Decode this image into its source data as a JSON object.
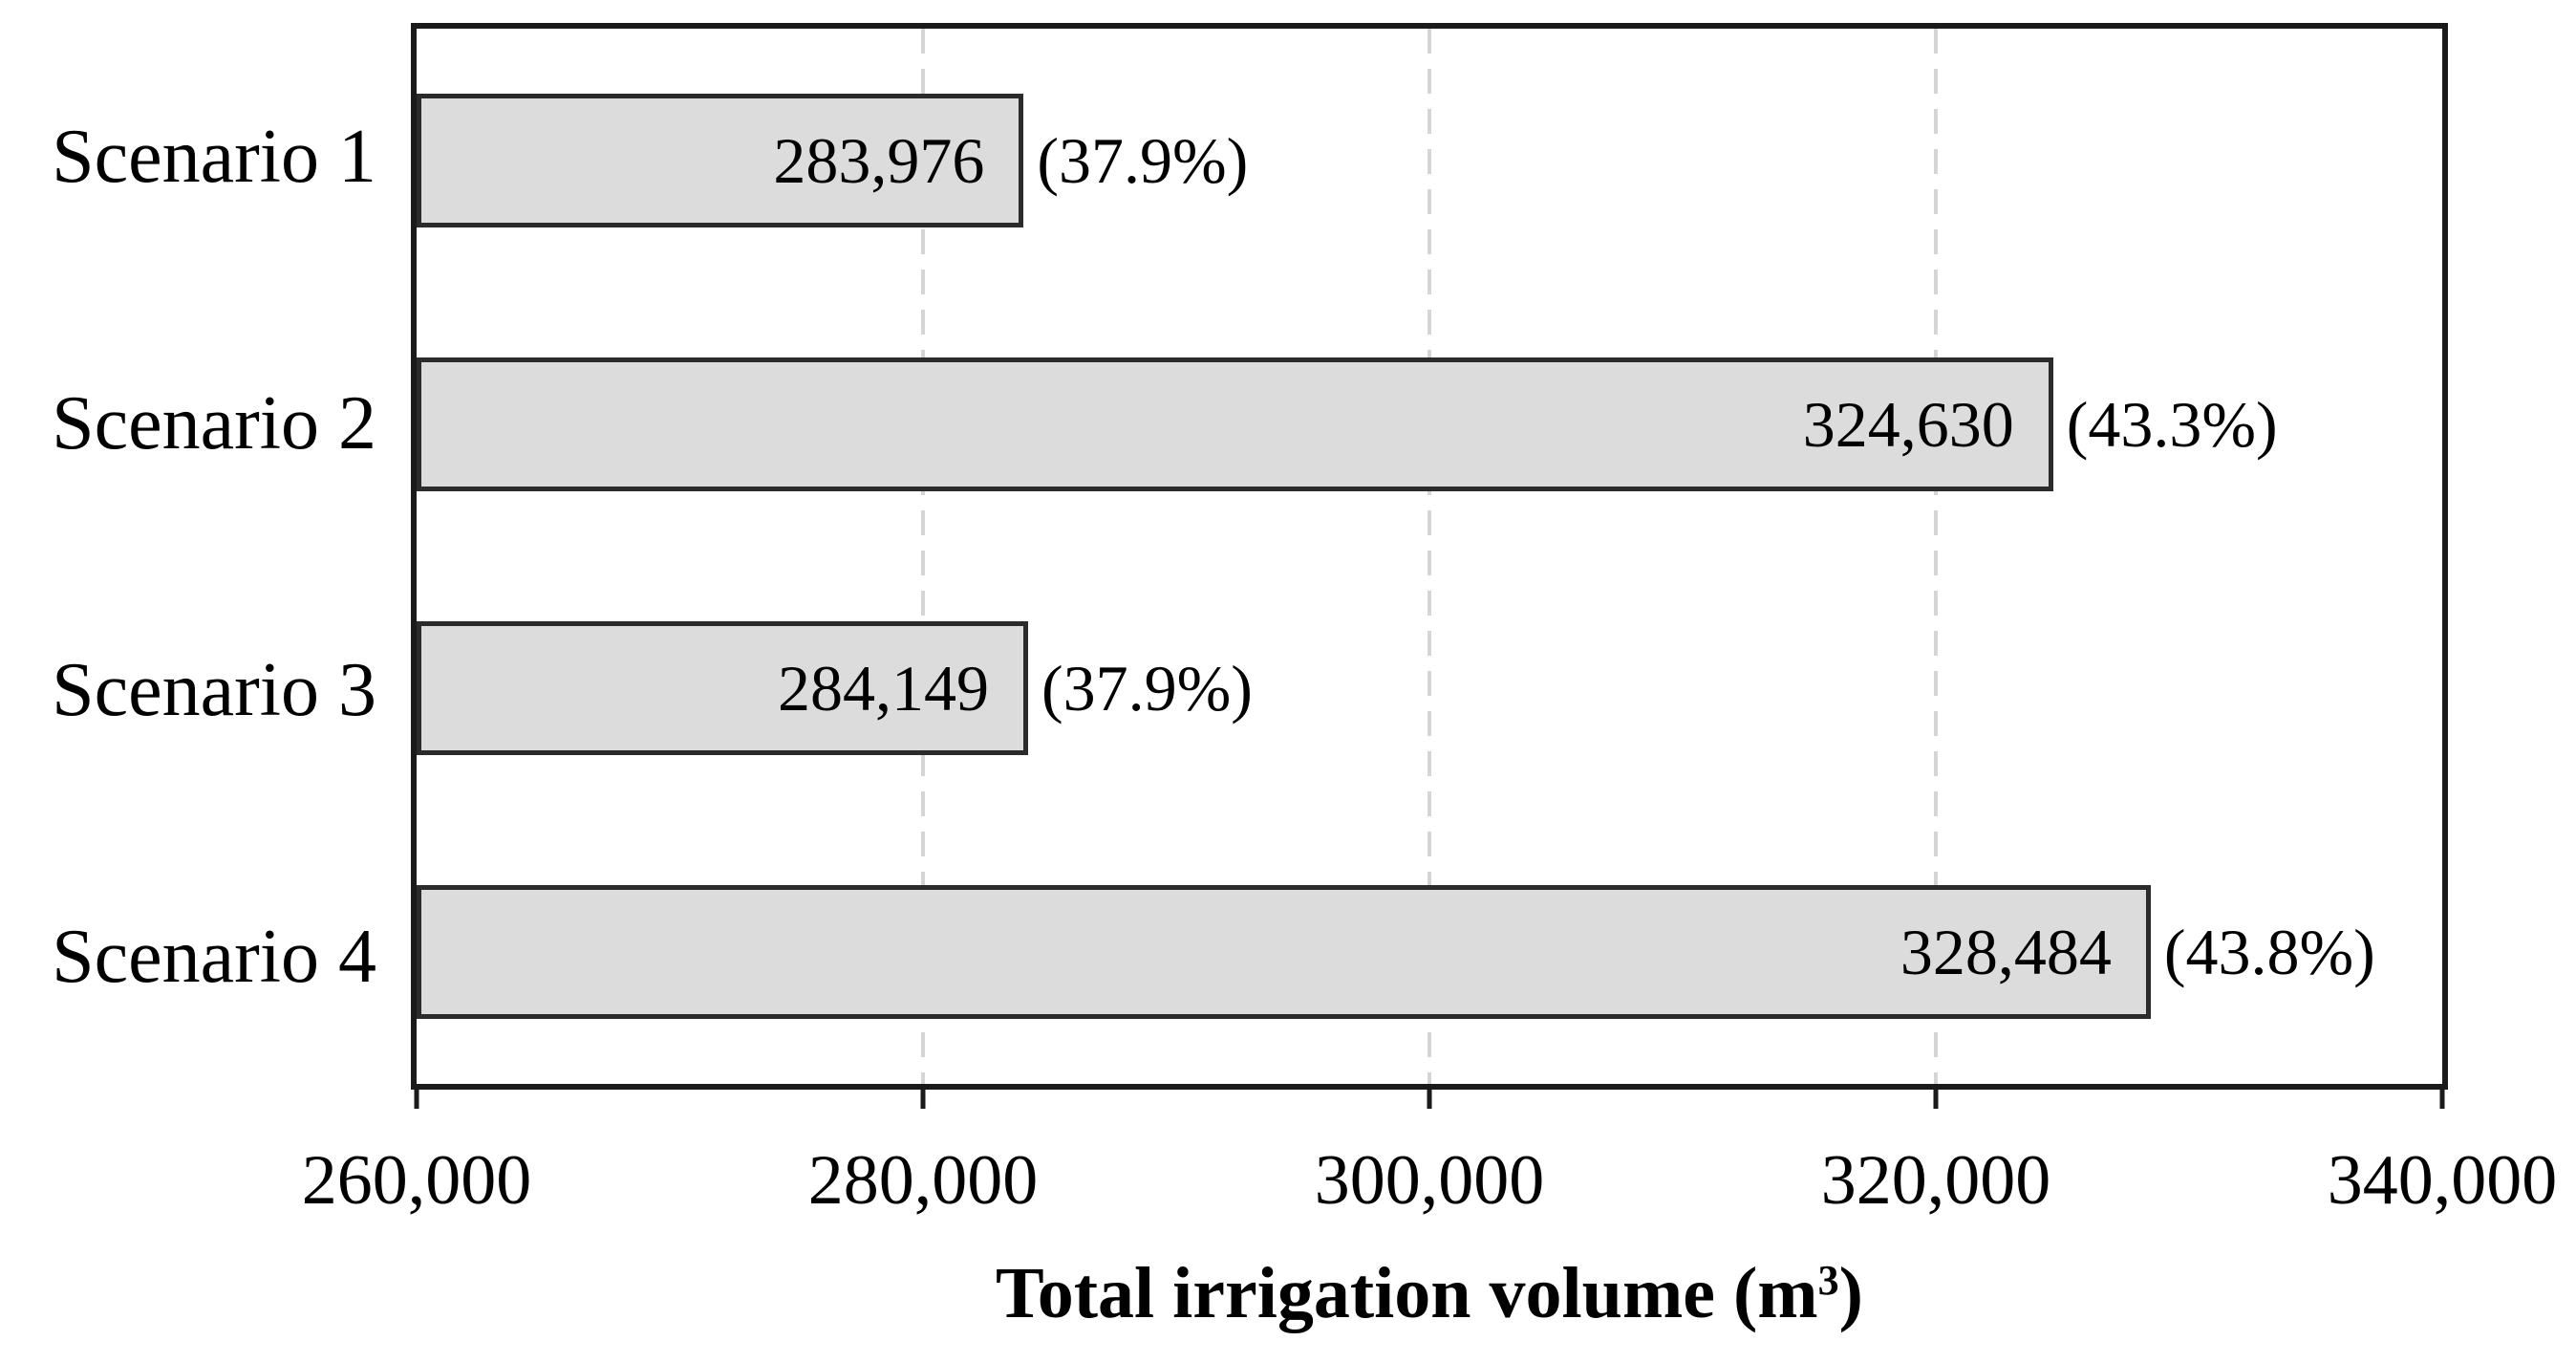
{
  "figure": {
    "background": "#ffffff"
  },
  "chart_data": {
    "type": "bar",
    "orientation": "horizontal",
    "title": "",
    "categories": [
      "Scenario 1",
      "Scenario 2",
      "Scenario 3",
      "Scenario 4"
    ],
    "values": [
      283976,
      324630,
      284149,
      328484
    ],
    "bar_value_labels": [
      "283,976",
      "324,630",
      "284,149",
      "328,484"
    ],
    "bar_percent_labels": [
      "(37.9%)",
      "(43.3%)",
      "(37.9%)",
      "(43.8%)"
    ],
    "xlabel": "Total irrigation volume (m³)",
    "ylabel": "",
    "xlim": [
      260000,
      340000
    ],
    "xticks": [
      260000,
      280000,
      300000,
      320000,
      340000
    ],
    "xtick_labels": [
      "260,000",
      "280,000",
      "300,000",
      "320,000",
      "340,000"
    ],
    "grid": {
      "vertical_dashed_at": [
        280000,
        300000,
        320000
      ],
      "color": "#d5d5d5",
      "style": "dashed"
    },
    "legend": "none",
    "style": {
      "bar_fill": "#dcdcdc",
      "bar_border": "#2b2b2b",
      "frame_color": "#1a1a1a",
      "tick_color": "#1a1a1a",
      "text_color": "#000000",
      "background": "#ffffff"
    }
  }
}
